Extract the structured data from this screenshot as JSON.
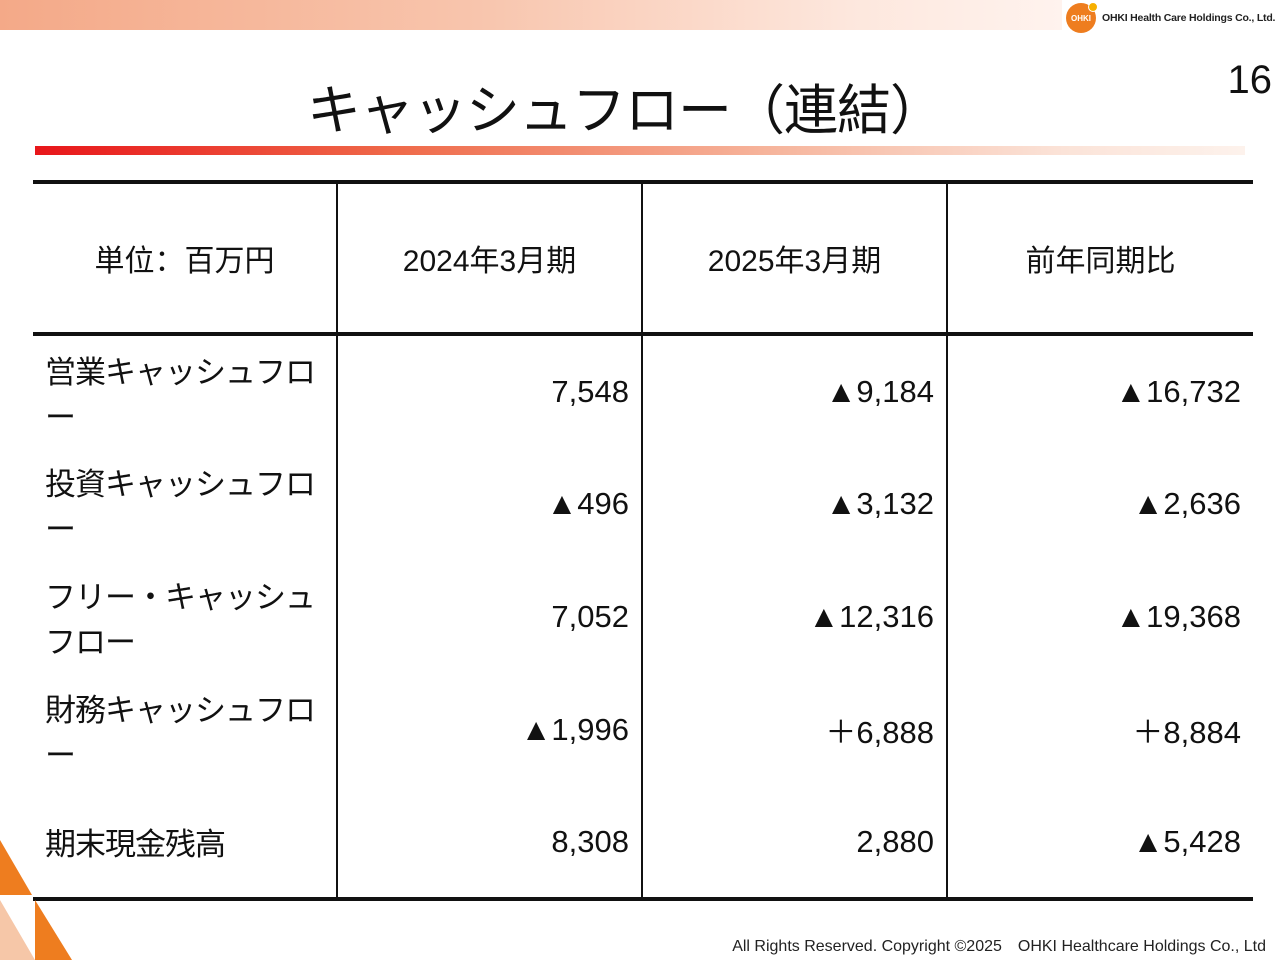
{
  "header": {
    "company": "OHKI Health Care Holdings Co., Ltd.",
    "logo_mark": "OHKI",
    "page_number": "16"
  },
  "title": "キャッシュフロー（連結）",
  "table": {
    "headers": [
      "単位：百万円",
      "2024年3月期",
      "2025年3月期",
      "前年同期比"
    ],
    "rows": [
      {
        "label": "営業キャッシュフロー",
        "values": [
          "7,548",
          "▲9,184",
          "▲16,732"
        ]
      },
      {
        "label": "投資キャッシュフロー",
        "values": [
          "▲496",
          "▲3,132",
          "▲2,636"
        ]
      },
      {
        "label": "フリー・キャッシュフロー",
        "values": [
          "7,052",
          "▲12,316",
          "▲19,368"
        ]
      },
      {
        "label": "財務キャッシュフロー",
        "values": [
          "▲1,996",
          "＋6,888",
          "＋8,884"
        ]
      },
      {
        "label": "期末現金残高",
        "values": [
          "8,308",
          "2,880",
          "▲5,428"
        ]
      }
    ]
  },
  "footer": "All Rights Reserved. Copyright ©2025　OHKI Healthcare Holdings Co., Ltd",
  "colors": {
    "accent_red": "#e8161a",
    "accent_orange": "#ee7d1f"
  }
}
